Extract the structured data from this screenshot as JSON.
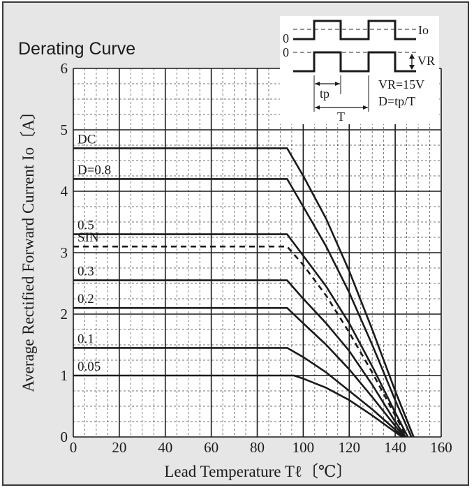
{
  "chart_data": {
    "type": "line",
    "title": "Derating Curve",
    "xlabel": "Lead Temperature  Tℓ〔℃〕",
    "ylabel": "Average Rectified Forward Current  Io〔A〕",
    "xlim": [
      0,
      160
    ],
    "ylim": [
      0,
      6
    ],
    "x_ticks": [
      0,
      20,
      40,
      60,
      80,
      100,
      120,
      140,
      160
    ],
    "y_ticks": [
      0,
      1,
      2,
      3,
      4,
      5,
      6
    ],
    "x_tick_labels": [
      "0",
      "20",
      "40",
      "60",
      "80",
      "100",
      "120",
      "140",
      "160"
    ],
    "y_tick_labels": [
      "0",
      "1",
      "2",
      "3",
      "4",
      "5",
      "6"
    ],
    "grid": true,
    "series": [
      {
        "name": "DC",
        "style": "solid",
        "points": [
          [
            0,
            4.7
          ],
          [
            93,
            4.7
          ],
          [
            100,
            4.25
          ],
          [
            110,
            3.55
          ],
          [
            120,
            2.7
          ],
          [
            130,
            1.75
          ],
          [
            140,
            0.75
          ],
          [
            148,
            0
          ]
        ]
      },
      {
        "name": "D=0.8",
        "style": "solid",
        "points": [
          [
            0,
            4.2
          ],
          [
            93,
            4.2
          ],
          [
            100,
            3.75
          ],
          [
            110,
            3.1
          ],
          [
            120,
            2.35
          ],
          [
            130,
            1.5
          ],
          [
            140,
            0.6
          ],
          [
            147,
            0
          ]
        ]
      },
      {
        "name": "0.5",
        "style": "solid",
        "points": [
          [
            0,
            3.3
          ],
          [
            93,
            3.3
          ],
          [
            100,
            2.95
          ],
          [
            110,
            2.45
          ],
          [
            120,
            1.85
          ],
          [
            130,
            1.15
          ],
          [
            140,
            0.4
          ],
          [
            145.5,
            0
          ]
        ]
      },
      {
        "name": "SIN",
        "style": "dashed",
        "points": [
          [
            0,
            3.1
          ],
          [
            93,
            3.1
          ],
          [
            100,
            2.8
          ],
          [
            110,
            2.3
          ],
          [
            120,
            1.7
          ],
          [
            130,
            1.05
          ],
          [
            140,
            0.35
          ],
          [
            145,
            0
          ]
        ]
      },
      {
        "name": "0.3",
        "style": "solid",
        "points": [
          [
            0,
            2.55
          ],
          [
            93,
            2.55
          ],
          [
            100,
            2.25
          ],
          [
            110,
            1.85
          ],
          [
            120,
            1.4
          ],
          [
            130,
            0.85
          ],
          [
            140,
            0.25
          ],
          [
            144.5,
            0
          ]
        ]
      },
      {
        "name": "0.2",
        "style": "solid",
        "points": [
          [
            0,
            2.1
          ],
          [
            93,
            2.1
          ],
          [
            100,
            1.85
          ],
          [
            110,
            1.5
          ],
          [
            120,
            1.1
          ],
          [
            130,
            0.65
          ],
          [
            140,
            0.18
          ],
          [
            144,
            0
          ]
        ]
      },
      {
        "name": "0.1",
        "style": "solid",
        "points": [
          [
            0,
            1.45
          ],
          [
            93,
            1.45
          ],
          [
            100,
            1.3
          ],
          [
            110,
            1.05
          ],
          [
            120,
            0.75
          ],
          [
            130,
            0.45
          ],
          [
            140,
            0.12
          ],
          [
            143.5,
            0
          ]
        ]
      },
      {
        "name": "0.05",
        "style": "solid",
        "points": [
          [
            0,
            1.0
          ],
          [
            96,
            1.0
          ],
          [
            100,
            0.95
          ],
          [
            110,
            0.8
          ],
          [
            120,
            0.6
          ],
          [
            130,
            0.35
          ],
          [
            140,
            0.08
          ],
          [
            143,
            0
          ]
        ]
      }
    ],
    "inset": {
      "labels": [
        "Io",
        "VR",
        "VR=15V",
        "D=tp/T",
        "tp",
        "T",
        "0",
        "0"
      ]
    }
  }
}
